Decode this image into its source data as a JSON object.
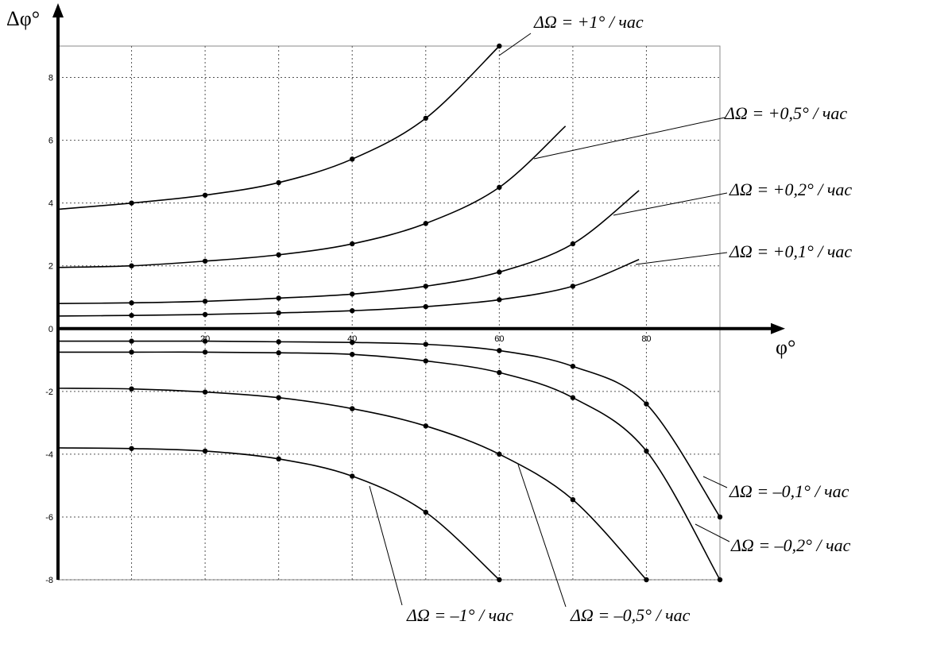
{
  "chart_data": {
    "type": "line",
    "x_label": "φ°",
    "y_label": "Δφ°",
    "xlim": [
      0,
      90
    ],
    "ylim": [
      -8,
      9
    ],
    "xticks": [
      20,
      40,
      60,
      80
    ],
    "x_minor_ticks": [
      10,
      30,
      50,
      70
    ],
    "yticks": [
      -8,
      -6,
      -4,
      -2,
      0,
      2,
      4,
      6,
      8
    ],
    "grid": true,
    "series": [
      {
        "name": "ΔΩ = +1° / час",
        "color": "#000000",
        "x": [
          0,
          10,
          20,
          30,
          40,
          50,
          60
        ],
        "values": [
          3.8,
          4.0,
          4.25,
          4.65,
          5.4,
          6.7,
          9.0
        ]
      },
      {
        "name": "ΔΩ = +0,5° / час",
        "color": "#000000",
        "x": [
          0,
          10,
          20,
          30,
          40,
          50,
          60,
          69
        ],
        "values": [
          1.95,
          2.0,
          2.15,
          2.35,
          2.7,
          3.35,
          4.5,
          6.45
        ]
      },
      {
        "name": "ΔΩ = +0,2° / час",
        "color": "#000000",
        "x": [
          0,
          10,
          20,
          30,
          40,
          50,
          60,
          70,
          79
        ],
        "values": [
          0.8,
          0.82,
          0.87,
          0.97,
          1.1,
          1.35,
          1.8,
          2.7,
          4.4
        ]
      },
      {
        "name": "ΔΩ = +0,1° / час",
        "color": "#000000",
        "x": [
          0,
          10,
          20,
          30,
          40,
          50,
          60,
          70,
          79
        ],
        "values": [
          0.4,
          0.42,
          0.45,
          0.5,
          0.57,
          0.7,
          0.92,
          1.35,
          2.2
        ]
      },
      {
        "name": "ΔΩ = –0,1° / час",
        "color": "#000000",
        "x": [
          0,
          10,
          20,
          30,
          40,
          50,
          60,
          70,
          80,
          90
        ],
        "values": [
          -0.4,
          -0.4,
          -0.4,
          -0.42,
          -0.44,
          -0.5,
          -0.7,
          -1.2,
          -2.4,
          -6.0
        ]
      },
      {
        "name": "ΔΩ = –0,2° / час",
        "color": "#000000",
        "x": [
          0,
          10,
          20,
          30,
          40,
          50,
          60,
          70,
          80,
          90
        ],
        "values": [
          -0.75,
          -0.75,
          -0.75,
          -0.77,
          -0.82,
          -1.03,
          -1.4,
          -2.2,
          -3.9,
          -8.0
        ]
      },
      {
        "name": "ΔΩ = –0,5° / час",
        "color": "#000000",
        "x": [
          0,
          10,
          20,
          30,
          40,
          50,
          60,
          70,
          80
        ],
        "values": [
          -1.9,
          -1.92,
          -2.02,
          -2.2,
          -2.55,
          -3.1,
          -4.0,
          -5.45,
          -8.0
        ]
      },
      {
        "name": "ΔΩ = –1° / час",
        "color": "#000000",
        "x": [
          0,
          10,
          20,
          30,
          40,
          50,
          60
        ],
        "values": [
          -3.8,
          -3.82,
          -3.9,
          -4.15,
          -4.7,
          -5.85,
          -8.0
        ]
      }
    ]
  }
}
